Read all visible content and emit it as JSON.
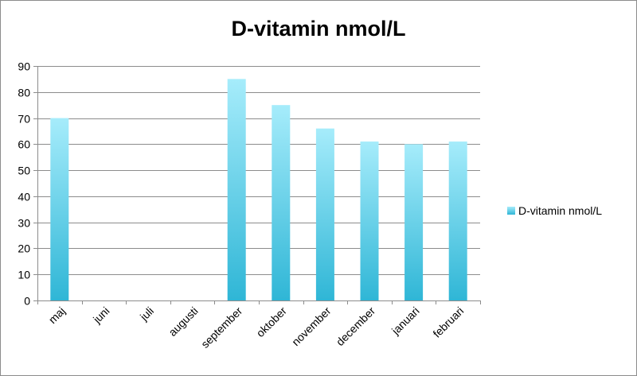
{
  "chart_data": {
    "type": "bar",
    "title": "D-vitamin nmol/L",
    "categories": [
      "maj",
      "juni",
      "juli",
      "augusti",
      "september",
      "oktober",
      "november",
      "december",
      "januari",
      "februari"
    ],
    "series": [
      {
        "name": "D-vitamin nmol/L",
        "values": [
          70,
          null,
          null,
          null,
          85,
          75,
          66,
          61,
          60,
          61
        ]
      }
    ],
    "xlabel": "",
    "ylabel": "",
    "ylim": [
      0,
      90
    ],
    "yticks": [
      0,
      10,
      20,
      30,
      40,
      50,
      60,
      70,
      80,
      90
    ],
    "grid": "horizontal",
    "legend_position": "right",
    "colors": {
      "bar_top": "#a6ecfb",
      "bar_bottom": "#2fb6d6",
      "grid": "#8c8c8c",
      "axis": "#8c8c8c"
    }
  }
}
